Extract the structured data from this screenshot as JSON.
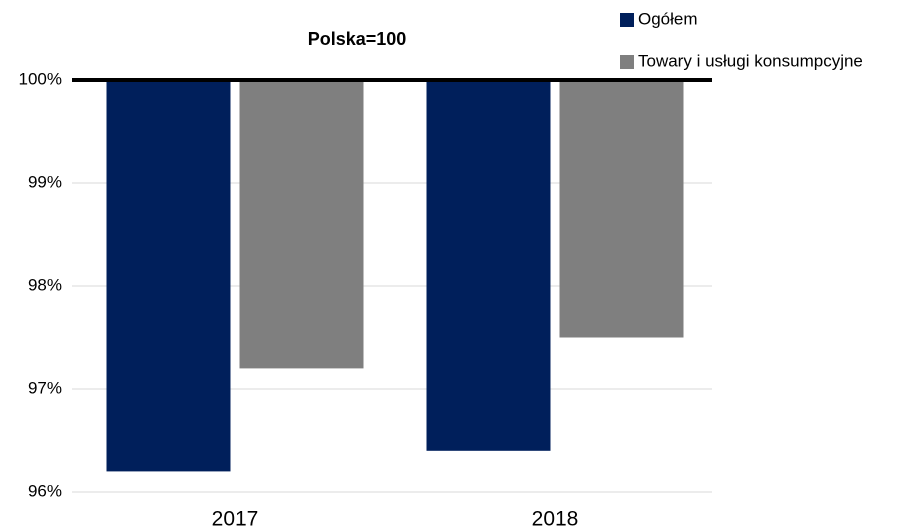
{
  "chart_data": {
    "type": "bar",
    "title": "Polska=100",
    "categories": [
      "2017",
      "2018"
    ],
    "series": [
      {
        "name": "Ogółem",
        "color": "#001f5b",
        "values": [
          96.2,
          96.4
        ]
      },
      {
        "name": "Towary i usługi konsumpcyjne",
        "color": "#7f7f7f",
        "values": [
          97.2,
          97.5
        ]
      }
    ],
    "ylim": [
      96,
      100
    ],
    "yticks": [
      {
        "value": 96,
        "label": "96%"
      },
      {
        "value": 97,
        "label": "97%"
      },
      {
        "value": 98,
        "label": "98%"
      },
      {
        "value": 99,
        "label": "99%"
      },
      {
        "value": 100,
        "label": "100%"
      }
    ],
    "grid": true,
    "legend": "top-right"
  }
}
